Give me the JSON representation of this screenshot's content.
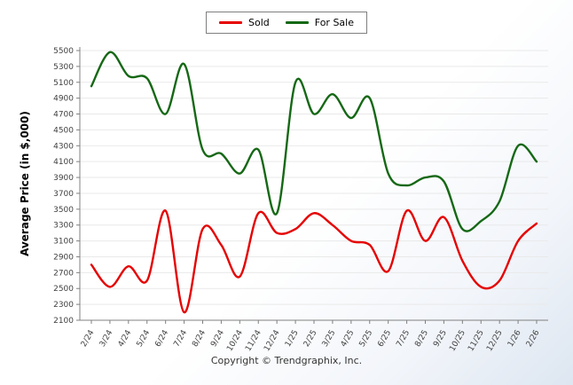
{
  "ylabel": "Average Price (in $,000)",
  "footer": "Copyright © Trendgraphix, Inc.",
  "chart_data": {
    "type": "line",
    "title": "",
    "xlabel": "",
    "ylabel": "Average Price (in $,000)",
    "legend_position": "top",
    "grid": true,
    "ylim": [
      2100,
      5500
    ],
    "ytick_step": 200,
    "categories": [
      "2/24",
      "3/24",
      "4/24",
      "5/24",
      "6/24",
      "7/24",
      "8/24",
      "9/24",
      "10/24",
      "11/24",
      "12/24",
      "1/25",
      "2/25",
      "3/25",
      "4/25",
      "5/25",
      "6/25",
      "7/25",
      "8/25",
      "9/25",
      "10/25",
      "11/25",
      "12/25",
      "1/26",
      "2/26"
    ],
    "series": [
      {
        "name": "Sold",
        "color": "#e60000",
        "values": [
          2800,
          2520,
          2780,
          2600,
          3480,
          2200,
          3250,
          3050,
          2650,
          3450,
          3200,
          3250,
          3450,
          3300,
          3100,
          3050,
          2720,
          3480,
          3100,
          3400,
          2850,
          2520,
          2600,
          3100,
          3320
        ]
      },
      {
        "name": "For Sale",
        "color": "#156815",
        "values": [
          5050,
          5480,
          5180,
          5150,
          4700,
          5330,
          4250,
          4200,
          3950,
          4250,
          3450,
          5100,
          4700,
          4950,
          4650,
          4900,
          3950,
          3800,
          3900,
          3850,
          3250,
          3350,
          3600,
          4300,
          4100
        ]
      }
    ],
    "axis_color": "#808080",
    "gridline_color": "#e9e9e9",
    "tick_text_color": "#404040"
  }
}
